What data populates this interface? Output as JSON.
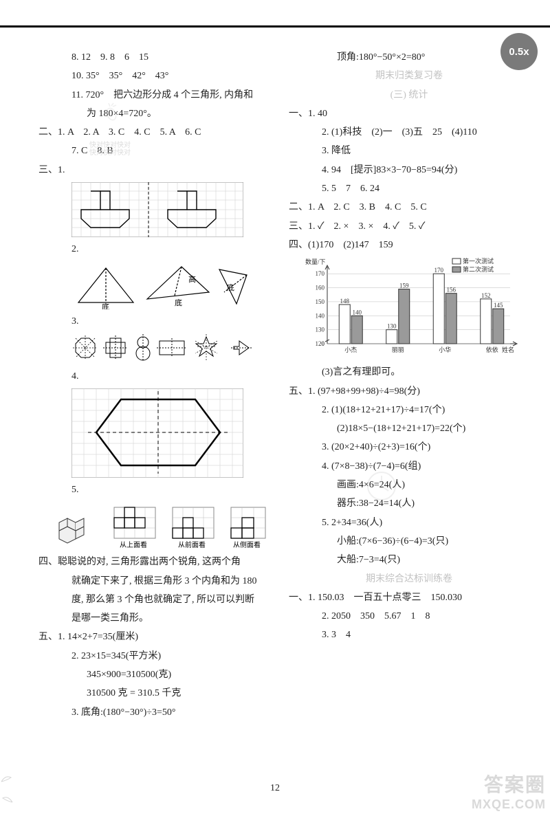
{
  "zoom_badge": "0.5x",
  "page_number": "12",
  "corner": {
    "cn": "答案圈",
    "url": "MXQE.COM"
  },
  "left": {
    "l8": "8. 12　9. 8　6　15",
    "l10": "10. 35°　35°　42°　43°",
    "l11a": "11. 720°　把六边形分成 4 个三角形, 内角和",
    "l11b": "为 180×4=720°。",
    "s2": "二、1. A　2. A　3. C　4. C　5. A　6. C",
    "s2b": "7. C　8. B",
    "wm1": "快对快对快对",
    "wm2": "快对快对快对",
    "s3": "三、1.",
    "p2": "2.",
    "p3": "3.",
    "p4": "4.",
    "p5": "5.",
    "view_top": "从上面看",
    "view_front": "从前面看",
    "view_side": "从侧面看",
    "tri_base": "底",
    "s4a": "四、聪聪说的对, 三角形露出两个锐角, 这两个角",
    "s4b": "就确定下来了, 根据三角形 3 个内角和为 180",
    "s4c": "度, 那么第 3 个角也就确定了, 所以可以判断",
    "s4d": "是哪一类三角形。",
    "s5_1": "五、1. 14×2+7=35(厘米)",
    "s5_2": "2. 23×15=345(平方米)",
    "s5_2b": "345×900=310500(克)",
    "s5_2c": "310500 克 = 310.5 千克",
    "s5_3": "3. 底角:(180°−30°)÷3=50°"
  },
  "right": {
    "r1": "顶角:180°−50°×2=80°",
    "title1": "期末归类复习卷",
    "title2": "(三) 统计",
    "y1": "一、1. 40",
    "y2": "2. (1)科技　(2)一　(3)五　25　(4)110",
    "y3": "3. 降低",
    "y4": "4. 94　[提示]83×3−70−85=94(分)",
    "y5": "5. 5　7　6. 24",
    "er": "二、1. A　2. C　3. B　4. C　5. C",
    "san": "三、1. ✓　2. ×　3. ×　4. ✓　5. ✓",
    "si": "四、(1)170　(2)147　159",
    "chart": {
      "ylabel": "数量/下",
      "xlabel": "姓名",
      "legend": [
        "第一次测试",
        "第二次测试"
      ],
      "legend_colors": [
        "#ffffff",
        "#9a9a9a"
      ],
      "categories": [
        "小杰",
        "丽丽",
        "小华",
        "依依"
      ],
      "series1": [
        148,
        130,
        170,
        152
      ],
      "series2": [
        140,
        159,
        156,
        145
      ],
      "ylim": [
        120,
        175
      ],
      "yticks": [
        120,
        130,
        140,
        150,
        160,
        170
      ],
      "bar_border": "#333333",
      "grid_color": "#bbbbbb",
      "axis_color": "#333333",
      "font_size": 9
    },
    "si3": "(3)言之有理即可。",
    "wu1": "五、1. (97+98+99+98)÷4=98(分)",
    "wu2a": "2. (1)(18+12+21+17)÷4=17(个)",
    "wu2b": "(2)18×5−(18+12+21+17)=22(个)",
    "wu3": "3. (20×2+40)÷(2+3)=16(个)",
    "wu4a": "4. (7×8−38)÷(7−4)=6(组)",
    "wu4b": "画画:4×6=24(人)",
    "wu4c": "器乐:38−24=14(人)",
    "wu5a": "5. 2+34=36(人)",
    "wu5b": "小船:(7×6−36)÷(6−4)=3(只)",
    "wu5c": "大船:7−3=4(只)",
    "title3": "期末综合达标训练卷",
    "b1": "一、1. 150.03　一百五十点零三　150.030",
    "b2": "2. 2050　350　5.67　1　8",
    "b3": "3. 3　4"
  }
}
